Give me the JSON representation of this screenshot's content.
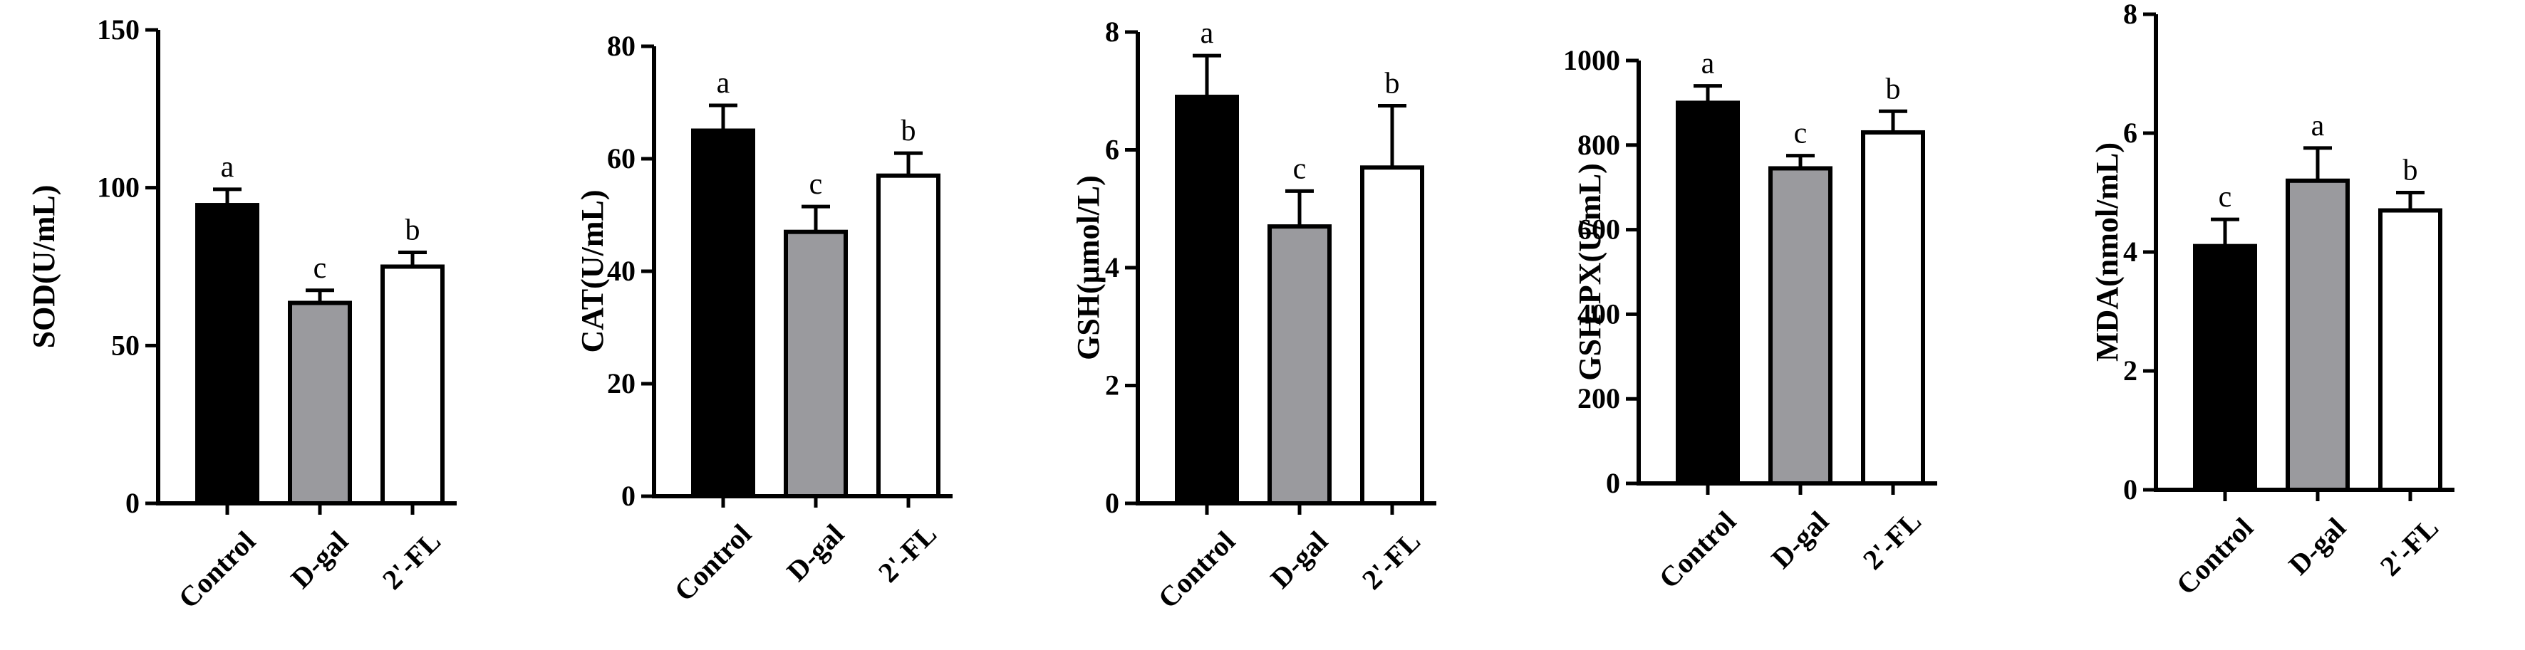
{
  "page": {
    "background": "#ffffff"
  },
  "style": {
    "axis_color": "#000000",
    "bar_colors": [
      "#000000",
      "#9a9a9e",
      "#ffffff"
    ],
    "bar_stroke": "#000000"
  },
  "chart_data": [
    {
      "type": "bar",
      "categories": [
        "Control",
        "D-gal",
        "2'-FL"
      ],
      "values": [
        94.5,
        63.5,
        75
      ],
      "errors": [
        5,
        4,
        4.5
      ],
      "significance": [
        "a",
        "c",
        "b"
      ],
      "ylabel": "SOD(U/mL)",
      "ylim": [
        0,
        150
      ],
      "yticks": [
        0,
        50,
        100,
        150
      ],
      "tick_labels": [
        "0",
        "50",
        "100",
        "150"
      ],
      "grid": false,
      "legend": "none"
    },
    {
      "type": "bar",
      "categories": [
        "Control",
        "D-gal",
        "2'-FL"
      ],
      "values": [
        65,
        47,
        57
      ],
      "errors": [
        4.5,
        4.5,
        4
      ],
      "significance": [
        "a",
        "c",
        "b"
      ],
      "ylabel": "CAT(U/mL)",
      "ylim": [
        0,
        80
      ],
      "yticks": [
        0,
        20,
        40,
        60,
        80
      ],
      "tick_labels": [
        "0",
        "20",
        "40",
        "60",
        "80"
      ],
      "grid": false,
      "legend": "none"
    },
    {
      "type": "bar",
      "categories": [
        "Control",
        "D-gal",
        "2'-FL"
      ],
      "values": [
        6.9,
        4.7,
        5.7
      ],
      "errors": [
        0.7,
        0.6,
        1.05
      ],
      "significance": [
        "a",
        "c",
        "b"
      ],
      "ylabel": "GSH(μmol/L)",
      "ylim": [
        0,
        8
      ],
      "yticks": [
        0,
        2,
        4,
        6,
        8
      ],
      "tick_labels": [
        "0",
        "2",
        "4",
        "6",
        "8"
      ],
      "grid": false,
      "legend": "none"
    },
    {
      "type": "bar",
      "categories": [
        "Control",
        "D-gal",
        "2'-FL"
      ],
      "values": [
        900,
        745,
        830
      ],
      "errors": [
        40,
        30,
        50
      ],
      "significance": [
        "a",
        "c",
        "b"
      ],
      "ylabel": "GSH-PX(U/mL)",
      "ylim": [
        0,
        1000
      ],
      "yticks": [
        0,
        200,
        400,
        600,
        800,
        1000
      ],
      "tick_labels": [
        "0",
        "200",
        "400",
        "600",
        "800",
        "1000"
      ],
      "grid": false,
      "legend": "none"
    },
    {
      "type": "bar",
      "categories": [
        "Control",
        "D-gal",
        "2'-FL"
      ],
      "values": [
        4.1,
        5.2,
        4.7
      ],
      "errors": [
        0.45,
        0.55,
        0.3
      ],
      "significance": [
        "c",
        "a",
        "b"
      ],
      "ylabel": "MDA(nmol/mL)",
      "ylim": [
        0,
        8
      ],
      "yticks": [
        0,
        2,
        4,
        6,
        8
      ],
      "tick_labels": [
        "0",
        "2",
        "4",
        "6",
        "8"
      ],
      "grid": false,
      "legend": "none"
    }
  ]
}
